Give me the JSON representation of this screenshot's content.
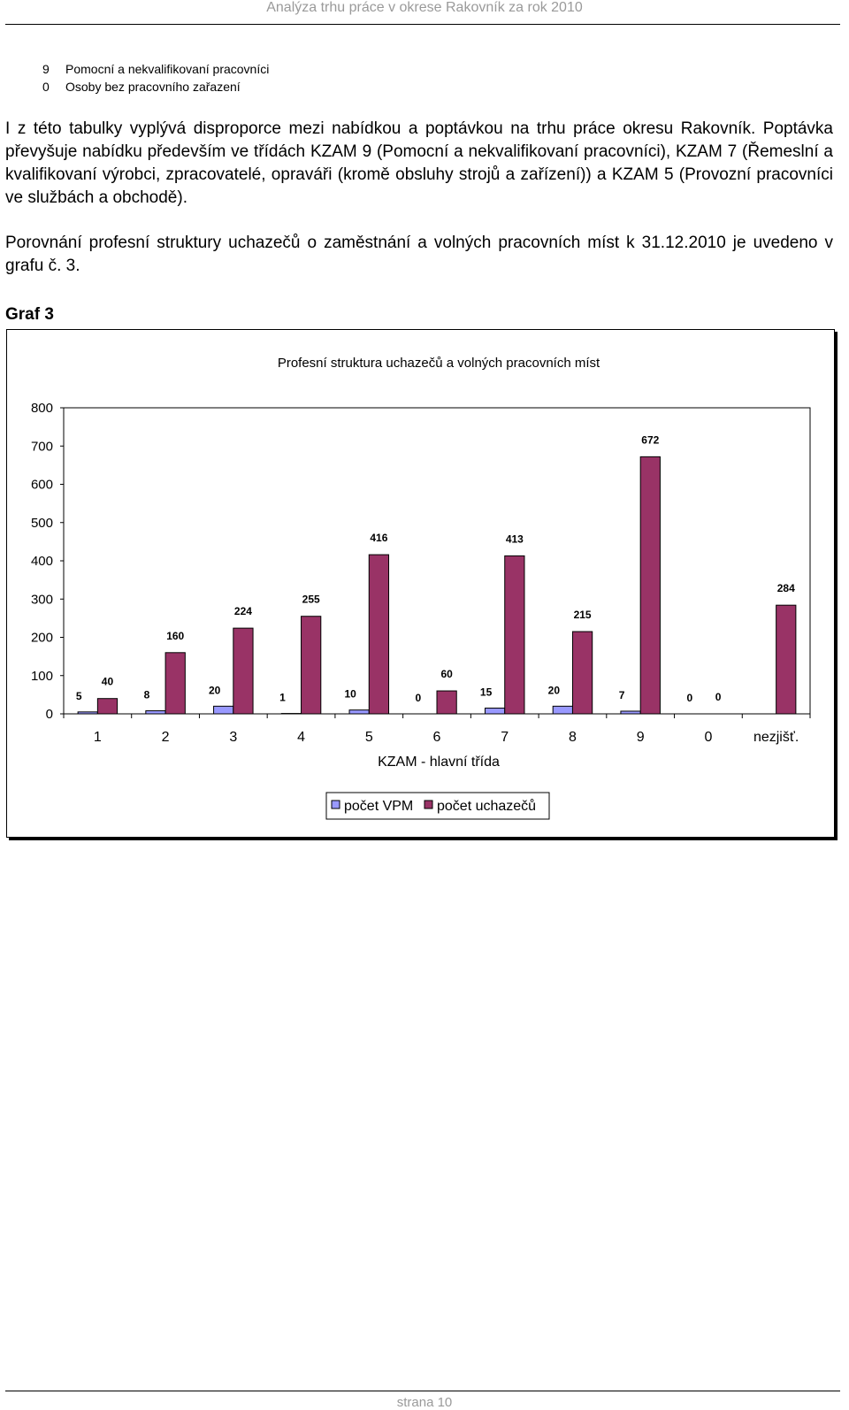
{
  "header": {
    "title": "Analýza trhu práce v okrese Rakovník za rok 2010"
  },
  "codes": [
    {
      "code": "9",
      "label": "Pomocní a nekvalifikovaní pracovníci"
    },
    {
      "code": "0",
      "label": "Osoby bez pracovního zařazení"
    }
  ],
  "paragraph1": "I z této tabulky vyplývá disproporce mezi nabídkou a poptávkou na trhu práce okresu Rakovník. Poptávka převyšuje nabídku především ve třídách KZAM 9 (Pomocní a nekvalifikovaní pracovníci), KZAM 7 (Řemeslní a kvalifikovaní výrobci, zpracovatelé, opraváři (kromě obsluhy strojů a zařízení)) a KZAM 5 (Provozní pracovníci ve službách a obchodě).",
  "paragraph2": "Porovnání profesní struktury uchazečů o zaměstnání a volných pracovních míst k 31.12.2010 je uvedeno v grafu č. 3.",
  "graf_label": "Graf 3",
  "chart_data": {
    "type": "bar",
    "title": "Profesní struktura uchazečů a volných pracovních míst",
    "xlabel": "KZAM - hlavní třída",
    "ylabel": "",
    "ylim": [
      0,
      800
    ],
    "yticks": [
      0,
      100,
      200,
      300,
      400,
      500,
      600,
      700,
      800
    ],
    "categories": [
      "1",
      "2",
      "3",
      "4",
      "5",
      "6",
      "7",
      "8",
      "9",
      "0",
      "nezjišť."
    ],
    "series": [
      {
        "name": "počet VPM",
        "color": "#9999ff",
        "values": [
          5,
          8,
          20,
          1,
          10,
          0,
          15,
          20,
          7,
          0,
          null
        ]
      },
      {
        "name": "počet uchazečů",
        "color": "#993366",
        "values": [
          40,
          160,
          224,
          255,
          416,
          60,
          413,
          215,
          672,
          0,
          284
        ]
      }
    ],
    "grid": false,
    "legend": "bottom-center"
  },
  "footer": {
    "page": "strana 10"
  }
}
